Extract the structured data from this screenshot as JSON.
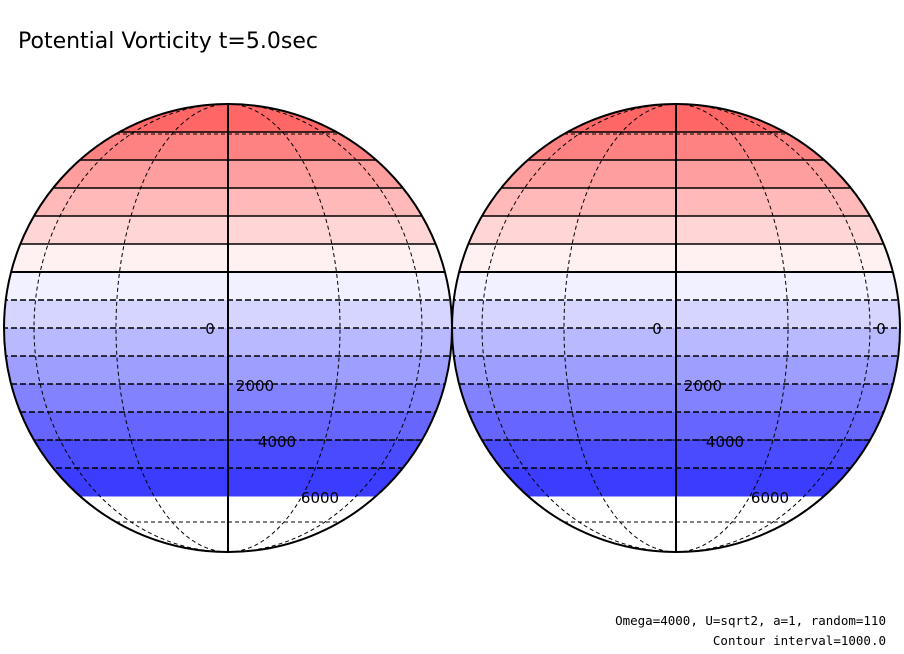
{
  "title": "Potential Vorticity t=5.0sec",
  "footer": {
    "line1": "Omega=4000, U=sqrt2, a=1, random=110",
    "line2": "Contour interval=1000.0"
  },
  "chart_data": {
    "type": "contour",
    "projection": "orthographic globe",
    "panels": 2,
    "variable": "Potential Vorticity",
    "time_sec": 5.0,
    "contour_interval": 1000,
    "value_range": [
      -7000,
      7000
    ],
    "color_map": {
      "negative": "#3c3cff",
      "zero": "#ffffff",
      "positive": "#ff3c3c"
    },
    "positive_levels": [
      1000,
      2000,
      3000,
      4000,
      5000,
      6000,
      7000
    ],
    "negative_levels": [
      -1000,
      -2000,
      -3000,
      -4000,
      -5000,
      -6000,
      -7000
    ],
    "contour_labels": {
      "left": [
        "0",
        "2000",
        "4000",
        "6000"
      ],
      "right": [
        "0",
        "0",
        "2000",
        "4000",
        "6000"
      ]
    },
    "meridians_deg": [
      -90,
      -60,
      -30,
      0,
      30,
      60,
      90
    ],
    "parallels_deg": [
      -60,
      -30,
      0,
      30,
      60
    ]
  }
}
